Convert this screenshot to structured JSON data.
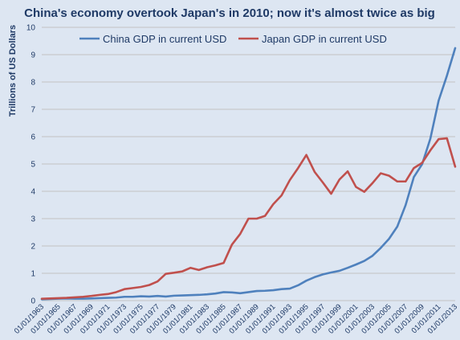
{
  "chart_data": {
    "type": "line",
    "title": "China's economy overtook Japan's in 2010; now it's almost twice as big",
    "ylabel": "Trillions of US Dollars",
    "xlabel": "",
    "ylim": [
      0,
      10
    ],
    "y_ticks": [
      0,
      1,
      2,
      3,
      4,
      5,
      6,
      7,
      8,
      9,
      10
    ],
    "x": [
      1963,
      1964,
      1965,
      1966,
      1967,
      1968,
      1969,
      1970,
      1971,
      1972,
      1973,
      1974,
      1975,
      1976,
      1977,
      1978,
      1979,
      1980,
      1981,
      1982,
      1983,
      1984,
      1985,
      1986,
      1987,
      1988,
      1989,
      1990,
      1991,
      1992,
      1993,
      1994,
      1995,
      1996,
      1997,
      1998,
      1999,
      2000,
      2001,
      2002,
      2003,
      2004,
      2005,
      2006,
      2007,
      2008,
      2009,
      2010,
      2011,
      2012,
      2013
    ],
    "x_tick_labels": [
      "01/01/1963",
      "01/01/1965",
      "01/01/1967",
      "01/01/1969",
      "01/01/1971",
      "01/01/1973",
      "01/01/1975",
      "01/01/1977",
      "01/01/1979",
      "01/01/1981",
      "01/01/1983",
      "01/01/1985",
      "01/01/1987",
      "01/01/1989",
      "01/01/1991",
      "01/01/1993",
      "01/01/1995",
      "01/01/1997",
      "01/01/1999",
      "01/01/2001",
      "01/01/2003",
      "01/01/2005",
      "01/01/2007",
      "01/01/2009",
      "01/01/2011",
      "01/01/2013"
    ],
    "x_tick_years": [
      1963,
      1965,
      1967,
      1969,
      1971,
      1973,
      1975,
      1977,
      1979,
      1981,
      1983,
      1985,
      1987,
      1989,
      1991,
      1993,
      1995,
      1997,
      1999,
      2001,
      2003,
      2005,
      2007,
      2009,
      2011,
      2013
    ],
    "series": [
      {
        "name": "China GDP in current USD",
        "color": "#4f81bd",
        "values": [
          0.05,
          0.06,
          0.07,
          0.08,
          0.07,
          0.07,
          0.08,
          0.09,
          0.1,
          0.11,
          0.14,
          0.14,
          0.16,
          0.15,
          0.17,
          0.15,
          0.18,
          0.19,
          0.2,
          0.21,
          0.23,
          0.26,
          0.31,
          0.3,
          0.27,
          0.31,
          0.35,
          0.36,
          0.38,
          0.42,
          0.44,
          0.56,
          0.73,
          0.86,
          0.96,
          1.03,
          1.09,
          1.2,
          1.32,
          1.45,
          1.64,
          1.93,
          2.26,
          2.71,
          3.49,
          4.52,
          4.99,
          5.93,
          7.32,
          8.23,
          9.24
        ]
      },
      {
        "name": "Japan GDP in current USD",
        "color": "#c0504d",
        "values": [
          0.07,
          0.08,
          0.09,
          0.1,
          0.12,
          0.14,
          0.17,
          0.21,
          0.24,
          0.31,
          0.42,
          0.46,
          0.5,
          0.57,
          0.7,
          0.98,
          1.02,
          1.07,
          1.2,
          1.12,
          1.22,
          1.29,
          1.38,
          2.05,
          2.44,
          3.0,
          3.0,
          3.1,
          3.53,
          3.85,
          4.41,
          4.85,
          5.33,
          4.71,
          4.32,
          3.91,
          4.43,
          4.73,
          4.16,
          3.98,
          4.3,
          4.66,
          4.57,
          4.36,
          4.36,
          4.85,
          5.04,
          5.5,
          5.91,
          5.94,
          4.9
        ]
      }
    ],
    "legend_position": "top-center",
    "grid": "horizontal",
    "colors": {
      "background": "#dde6f2",
      "gridline": "#c2c2c2",
      "text": "#1f3a66"
    }
  }
}
